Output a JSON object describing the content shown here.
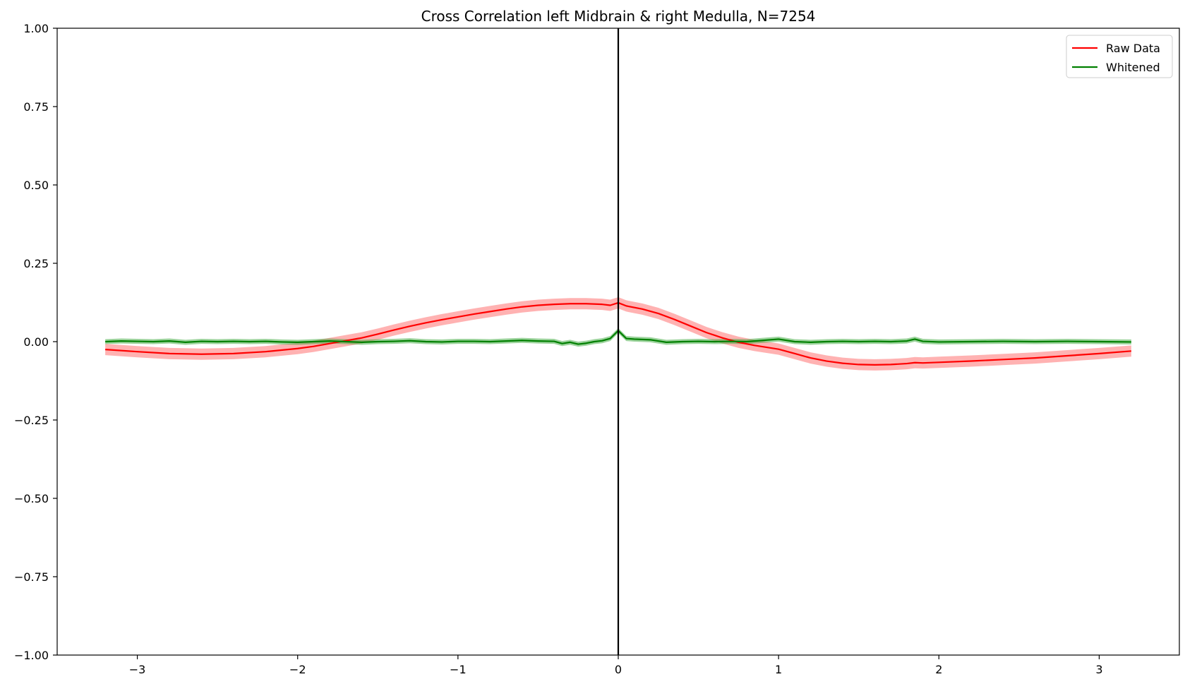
{
  "chart_data": {
    "type": "line",
    "title": "Cross Correlation left Midbrain & right Medulla, N=7254",
    "xlabel": "",
    "ylabel": "",
    "xlim": [
      -3.5,
      3.5
    ],
    "ylim": [
      -1.0,
      1.0
    ],
    "grid": false,
    "legend_position": "top-right",
    "vline_x": 0,
    "x_ticks": [
      -3,
      -2,
      -1,
      0,
      1,
      2,
      3
    ],
    "x_tick_labels": [
      "−3",
      "−2",
      "−1",
      "0",
      "1",
      "2",
      "3"
    ],
    "y_ticks": [
      1.0,
      0.75,
      0.5,
      0.25,
      0.0,
      -0.25,
      -0.5,
      -0.75,
      -1.0
    ],
    "y_tick_labels": [
      "1.00",
      "0.75",
      "0.50",
      "0.25",
      "0.00",
      "−0.25",
      "−0.50",
      "−0.75",
      "−1.00"
    ],
    "series": [
      {
        "name": "Raw Data",
        "color": "#ff0000",
        "band_color": "#ff6666",
        "band_halfwidth": 0.018,
        "points": [
          [
            -3.2,
            -0.025
          ],
          [
            -3.0,
            -0.032
          ],
          [
            -2.8,
            -0.038
          ],
          [
            -2.6,
            -0.04
          ],
          [
            -2.4,
            -0.038
          ],
          [
            -2.2,
            -0.032
          ],
          [
            -2.0,
            -0.022
          ],
          [
            -1.9,
            -0.015
          ],
          [
            -1.8,
            -0.006
          ],
          [
            -1.7,
            0.003
          ],
          [
            -1.6,
            0.012
          ],
          [
            -1.5,
            0.024
          ],
          [
            -1.4,
            0.037
          ],
          [
            -1.3,
            0.049
          ],
          [
            -1.2,
            0.06
          ],
          [
            -1.1,
            0.07
          ],
          [
            -1.0,
            0.079
          ],
          [
            -0.9,
            0.088
          ],
          [
            -0.8,
            0.096
          ],
          [
            -0.7,
            0.104
          ],
          [
            -0.6,
            0.111
          ],
          [
            -0.5,
            0.116
          ],
          [
            -0.4,
            0.119
          ],
          [
            -0.3,
            0.121
          ],
          [
            -0.2,
            0.121
          ],
          [
            -0.1,
            0.119
          ],
          [
            -0.05,
            0.116
          ],
          [
            0.0,
            0.124
          ],
          [
            0.05,
            0.114
          ],
          [
            0.15,
            0.104
          ],
          [
            0.25,
            0.09
          ],
          [
            0.35,
            0.071
          ],
          [
            0.45,
            0.05
          ],
          [
            0.55,
            0.029
          ],
          [
            0.65,
            0.012
          ],
          [
            0.75,
            -0.002
          ],
          [
            0.85,
            -0.012
          ],
          [
            1.0,
            -0.024
          ],
          [
            1.1,
            -0.038
          ],
          [
            1.2,
            -0.052
          ],
          [
            1.3,
            -0.062
          ],
          [
            1.4,
            -0.069
          ],
          [
            1.5,
            -0.073
          ],
          [
            1.6,
            -0.074
          ],
          [
            1.7,
            -0.073
          ],
          [
            1.8,
            -0.07
          ],
          [
            1.85,
            -0.067
          ],
          [
            1.9,
            -0.068
          ],
          [
            2.0,
            -0.066
          ],
          [
            2.2,
            -0.062
          ],
          [
            2.4,
            -0.057
          ],
          [
            2.6,
            -0.052
          ],
          [
            2.8,
            -0.045
          ],
          [
            3.0,
            -0.038
          ],
          [
            3.2,
            -0.03
          ]
        ]
      },
      {
        "name": "Whitened",
        "color": "#008000",
        "band_color": "#3aa83a",
        "band_halfwidth": 0.008,
        "points": [
          [
            -3.2,
            0.0
          ],
          [
            -3.1,
            0.002
          ],
          [
            -3.0,
            0.001
          ],
          [
            -2.9,
            0.0
          ],
          [
            -2.8,
            0.002
          ],
          [
            -2.7,
            -0.002
          ],
          [
            -2.6,
            0.001
          ],
          [
            -2.5,
            0.0
          ],
          [
            -2.4,
            0.001
          ],
          [
            -2.3,
            0.0
          ],
          [
            -2.2,
            0.001
          ],
          [
            -2.1,
            -0.001
          ],
          [
            -2.0,
            -0.002
          ],
          [
            -1.9,
            0.0
          ],
          [
            -1.8,
            0.002
          ],
          [
            -1.7,
            0.0
          ],
          [
            -1.6,
            -0.002
          ],
          [
            -1.5,
            0.0
          ],
          [
            -1.4,
            0.001
          ],
          [
            -1.3,
            0.003
          ],
          [
            -1.2,
            0.0
          ],
          [
            -1.1,
            -0.001
          ],
          [
            -1.0,
            0.001
          ],
          [
            -0.9,
            0.001
          ],
          [
            -0.8,
            0.0
          ],
          [
            -0.7,
            0.002
          ],
          [
            -0.6,
            0.004
          ],
          [
            -0.5,
            0.002
          ],
          [
            -0.4,
            0.001
          ],
          [
            -0.35,
            -0.006
          ],
          [
            -0.3,
            -0.002
          ],
          [
            -0.25,
            -0.008
          ],
          [
            -0.2,
            -0.005
          ],
          [
            -0.15,
            0.0
          ],
          [
            -0.1,
            0.003
          ],
          [
            -0.05,
            0.01
          ],
          [
            0.0,
            0.035
          ],
          [
            0.05,
            0.01
          ],
          [
            0.1,
            0.008
          ],
          [
            0.2,
            0.006
          ],
          [
            0.3,
            -0.002
          ],
          [
            0.4,
            0.0
          ],
          [
            0.5,
            0.001
          ],
          [
            0.6,
            0.0
          ],
          [
            0.7,
            0.001
          ],
          [
            0.8,
            0.0
          ],
          [
            0.9,
            0.004
          ],
          [
            1.0,
            0.008
          ],
          [
            1.1,
            0.0
          ],
          [
            1.2,
            -0.002
          ],
          [
            1.3,
            0.0
          ],
          [
            1.4,
            0.001
          ],
          [
            1.5,
            0.0
          ],
          [
            1.6,
            0.001
          ],
          [
            1.7,
            0.0
          ],
          [
            1.8,
            0.002
          ],
          [
            1.85,
            0.008
          ],
          [
            1.9,
            0.001
          ],
          [
            2.0,
            -0.001
          ],
          [
            2.2,
            0.0
          ],
          [
            2.4,
            0.001
          ],
          [
            2.6,
            0.0
          ],
          [
            2.8,
            0.001
          ],
          [
            3.0,
            0.0
          ],
          [
            3.2,
            -0.001
          ]
        ]
      }
    ]
  }
}
